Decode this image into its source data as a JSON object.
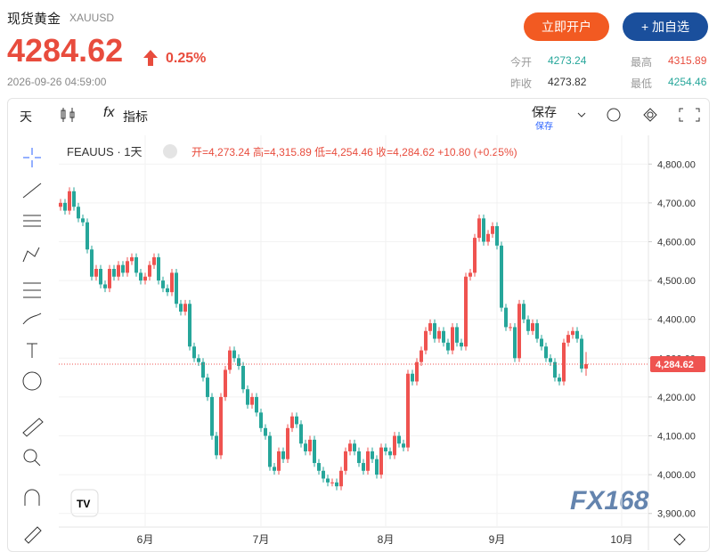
{
  "header": {
    "name": "现货黄金",
    "symbol": "XAUUSD",
    "price": "4284.62",
    "change": "0.25%",
    "time": "2026-09-26 04:59:00",
    "buttons": [
      "立即开户",
      "+ 加自选"
    ],
    "stats": [
      {
        "label": "今开",
        "value": "4273.24"
      },
      {
        "label": "最高",
        "value": "4315.89"
      },
      {
        "label": "昨收",
        "value": "4273.82"
      },
      {
        "label": "最低",
        "value": "4254.46"
      }
    ]
  },
  "toolbar": {
    "interval": "天",
    "indicators": "指标",
    "save": "保存",
    "save_sub": "保存"
  },
  "chart_data": {
    "type": "candlestick",
    "title": "FEAUUS · 1天",
    "ohlc_legend": "开=4,273.24 高=4,315.89 低=4,254.46 收=4,284.62 +10.80 (+0.25%)",
    "last_price": 4284.62,
    "last_price_label": "4,284.62",
    "watermark": "FX168",
    "up_color": "#ef5350",
    "down_color": "#26a69a",
    "xlim": [
      -0.4,
      132
    ],
    "xticks": [
      {
        "value": 19,
        "label": "6月"
      },
      {
        "value": 45,
        "label": "7月"
      },
      {
        "value": 73,
        "label": "8月"
      },
      {
        "value": 98,
        "label": "9月"
      },
      {
        "value": 126,
        "label": "10月"
      }
    ],
    "ylim": [
      3865,
      4874
    ],
    "yticks": [
      {
        "value": 3900,
        "label": "3,900.00"
      },
      {
        "value": 4000,
        "label": "4,000.00"
      },
      {
        "value": 4100,
        "label": "4,100.00"
      },
      {
        "value": 4200,
        "label": "4,200.00"
      },
      {
        "value": 4300,
        "label": "4,300.00"
      },
      {
        "value": 4400,
        "label": "4,400.00"
      },
      {
        "value": 4500,
        "label": "4,500.00"
      },
      {
        "value": 4600,
        "label": "4,600.00"
      },
      {
        "value": 4700,
        "label": "4,700.00"
      },
      {
        "value": 4800,
        "label": "4,800.00"
      }
    ],
    "candles": [
      [
        4690,
        4710,
        4680,
        4700
      ],
      [
        4700,
        4710,
        4670,
        4680
      ],
      [
        4680,
        4740,
        4670,
        4730
      ],
      [
        4730,
        4740,
        4680,
        4690
      ],
      [
        4690,
        4700,
        4650,
        4660
      ],
      [
        4660,
        4670,
        4640,
        4650
      ],
      [
        4650,
        4660,
        4570,
        4580
      ],
      [
        4580,
        4590,
        4500,
        4510
      ],
      [
        4510,
        4540,
        4500,
        4530
      ],
      [
        4530,
        4540,
        4480,
        4490
      ],
      [
        4490,
        4500,
        4470,
        4480
      ],
      [
        4480,
        4540,
        4470,
        4530
      ],
      [
        4530,
        4540,
        4500,
        4510
      ],
      [
        4510,
        4550,
        4500,
        4540
      ],
      [
        4540,
        4550,
        4510,
        4520
      ],
      [
        4520,
        4560,
        4510,
        4550
      ],
      [
        4550,
        4570,
        4540,
        4560
      ],
      [
        4560,
        4570,
        4510,
        4520
      ],
      [
        4520,
        4530,
        4490,
        4500
      ],
      [
        4500,
        4520,
        4490,
        4510
      ],
      [
        4510,
        4550,
        4500,
        4540
      ],
      [
        4540,
        4570,
        4530,
        4560
      ],
      [
        4560,
        4570,
        4490,
        4500
      ],
      [
        4500,
        4510,
        4470,
        4480
      ],
      [
        4480,
        4490,
        4460,
        4470
      ],
      [
        4470,
        4530,
        4460,
        4520
      ],
      [
        4520,
        4530,
        4430,
        4440
      ],
      [
        4440,
        4450,
        4410,
        4420
      ],
      [
        4420,
        4450,
        4410,
        4440
      ],
      [
        4440,
        4450,
        4320,
        4330
      ],
      [
        4330,
        4340,
        4290,
        4300
      ],
      [
        4300,
        4310,
        4280,
        4290
      ],
      [
        4290,
        4300,
        4240,
        4250
      ],
      [
        4250,
        4260,
        4190,
        4200
      ],
      [
        4200,
        4210,
        4090,
        4100
      ],
      [
        4100,
        4110,
        4040,
        4050
      ],
      [
        4050,
        4210,
        4040,
        4200
      ],
      [
        4200,
        4280,
        4190,
        4270
      ],
      [
        4270,
        4330,
        4260,
        4320
      ],
      [
        4320,
        4330,
        4290,
        4300
      ],
      [
        4300,
        4310,
        4270,
        4280
      ],
      [
        4280,
        4290,
        4210,
        4220
      ],
      [
        4220,
        4230,
        4170,
        4180
      ],
      [
        4180,
        4210,
        4170,
        4200
      ],
      [
        4200,
        4210,
        4150,
        4160
      ],
      [
        4160,
        4170,
        4110,
        4120
      ],
      [
        4120,
        4130,
        4090,
        4100
      ],
      [
        4100,
        4110,
        4010,
        4020
      ],
      [
        4020,
        4030,
        4000,
        4010
      ],
      [
        4010,
        4070,
        4000,
        4060
      ],
      [
        4060,
        4070,
        4030,
        4040
      ],
      [
        4040,
        4130,
        4030,
        4120
      ],
      [
        4120,
        4160,
        4110,
        4150
      ],
      [
        4150,
        4160,
        4120,
        4130
      ],
      [
        4130,
        4140,
        4070,
        4080
      ],
      [
        4080,
        4090,
        4050,
        4060
      ],
      [
        4060,
        4100,
        4050,
        4090
      ],
      [
        4090,
        4100,
        4020,
        4030
      ],
      [
        4030,
        4040,
        4000,
        4010
      ],
      [
        4010,
        4020,
        3980,
        3990
      ],
      [
        3990,
        4000,
        3970,
        3980
      ],
      [
        3980,
        3990,
        3970,
        3980
      ],
      [
        3980,
        3990,
        3960,
        3970
      ],
      [
        3970,
        4020,
        3960,
        4010
      ],
      [
        4010,
        4070,
        4000,
        4060
      ],
      [
        4060,
        4090,
        4050,
        4080
      ],
      [
        4080,
        4090,
        4050,
        4060
      ],
      [
        4060,
        4070,
        4020,
        4030
      ],
      [
        4030,
        4040,
        4000,
        4010
      ],
      [
        4010,
        4070,
        4000,
        4060
      ],
      [
        4060,
        4070,
        4030,
        4040
      ],
      [
        4040,
        4050,
        3990,
        4000
      ],
      [
        4000,
        4080,
        3990,
        4070
      ],
      [
        4070,
        4080,
        4050,
        4060
      ],
      [
        4060,
        4070,
        4040,
        4050
      ],
      [
        4050,
        4110,
        4040,
        4100
      ],
      [
        4100,
        4110,
        4070,
        4080
      ],
      [
        4080,
        4090,
        4060,
        4070
      ],
      [
        4070,
        4270,
        4060,
        4260
      ],
      [
        4260,
        4270,
        4230,
        4240
      ],
      [
        4240,
        4300,
        4230,
        4290
      ],
      [
        4290,
        4330,
        4280,
        4320
      ],
      [
        4320,
        4380,
        4310,
        4370
      ],
      [
        4370,
        4400,
        4360,
        4390
      ],
      [
        4390,
        4400,
        4340,
        4350
      ],
      [
        4350,
        4380,
        4340,
        4370
      ],
      [
        4370,
        4380,
        4330,
        4340
      ],
      [
        4340,
        4350,
        4310,
        4320
      ],
      [
        4320,
        4390,
        4310,
        4380
      ],
      [
        4380,
        4390,
        4330,
        4340
      ],
      [
        4340,
        4350,
        4320,
        4330
      ],
      [
        4330,
        4520,
        4320,
        4510
      ],
      [
        4510,
        4530,
        4500,
        4520
      ],
      [
        4520,
        4620,
        4510,
        4610
      ],
      [
        4610,
        4670,
        4600,
        4660
      ],
      [
        4660,
        4670,
        4590,
        4600
      ],
      [
        4600,
        4630,
        4590,
        4620
      ],
      [
        4620,
        4650,
        4610,
        4640
      ],
      [
        4640,
        4650,
        4580,
        4590
      ],
      [
        4590,
        4600,
        4420,
        4430
      ],
      [
        4430,
        4440,
        4370,
        4380
      ],
      [
        4380,
        4390,
        4370,
        4380
      ],
      [
        4380,
        4390,
        4290,
        4300
      ],
      [
        4300,
        4450,
        4290,
        4440
      ],
      [
        4440,
        4450,
        4390,
        4400
      ],
      [
        4400,
        4410,
        4360,
        4370
      ],
      [
        4370,
        4400,
        4360,
        4390
      ],
      [
        4390,
        4400,
        4340,
        4350
      ],
      [
        4350,
        4360,
        4320,
        4330
      ],
      [
        4330,
        4340,
        4290,
        4300
      ],
      [
        4300,
        4310,
        4280,
        4290
      ],
      [
        4290,
        4300,
        4240,
        4250
      ],
      [
        4250,
        4260,
        4230,
        4240
      ],
      [
        4240,
        4350,
        4230,
        4340
      ],
      [
        4340,
        4370,
        4330,
        4360
      ],
      [
        4360,
        4380,
        4350,
        4370
      ],
      [
        4370,
        4380,
        4340,
        4350
      ],
      [
        4350,
        4360,
        4263.24,
        4273.24
      ],
      [
        4273.24,
        4315.89,
        4254.46,
        4284.62
      ]
    ]
  }
}
